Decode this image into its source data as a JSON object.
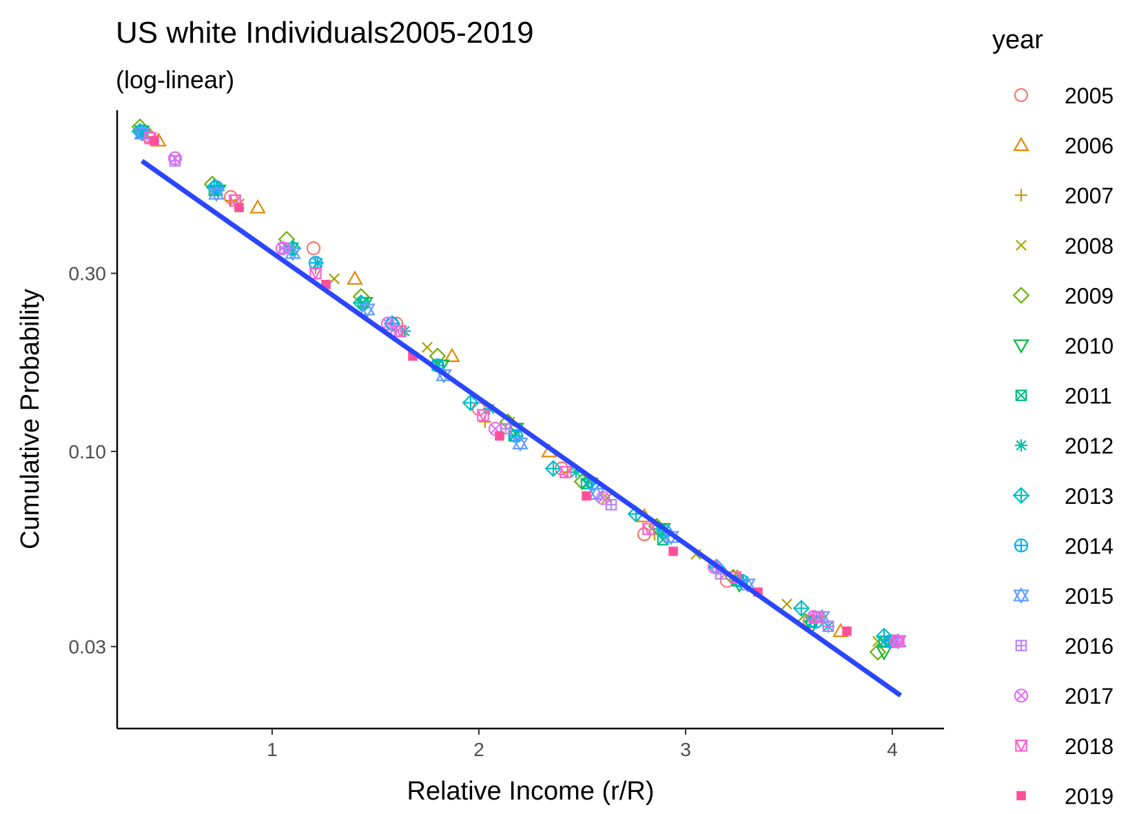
{
  "chart_data": {
    "type": "scatter",
    "title": "US white Individuals2005-2019",
    "subtitle": "(log-linear)",
    "xlabel": "Relative Income (r/R)",
    "ylabel": "Cumulative Probability",
    "x_scale": "linear",
    "y_scale": "log",
    "xlim": [
      0.25,
      4.25
    ],
    "ylim": [
      0.0181,
      0.82
    ],
    "x_ticks": [
      1,
      2,
      3,
      4
    ],
    "x_tick_labels": [
      "1",
      "2",
      "3",
      "4"
    ],
    "y_ticks": [
      0.03,
      0.1,
      0.3
    ],
    "y_tick_labels": [
      "0.03",
      "0.10",
      "0.30"
    ],
    "grid": false,
    "legend": {
      "title": "year",
      "position": "right",
      "entries": [
        "2005",
        "2006",
        "2007",
        "2008",
        "2009",
        "2010",
        "2011",
        "2012",
        "2013",
        "2014",
        "2015",
        "2016",
        "2017",
        "2018",
        "2019"
      ]
    },
    "series": [
      {
        "name": "2005",
        "color": "#F8766D",
        "shape": "circle",
        "points": [
          [
            0.4,
            0.7
          ],
          [
            0.8,
            0.48
          ],
          [
            1.2,
            0.35
          ],
          [
            1.6,
            0.22
          ],
          [
            2.0,
            0.13
          ],
          [
            2.4,
            0.09
          ],
          [
            2.8,
            0.06
          ],
          [
            3.2,
            0.045
          ],
          [
            3.6,
            0.035
          ],
          [
            4.0,
            0.031
          ]
        ]
      },
      {
        "name": "2006",
        "color": "#E58700",
        "shape": "triangle-up",
        "points": [
          [
            0.45,
            0.68
          ],
          [
            0.93,
            0.45
          ],
          [
            1.4,
            0.29
          ],
          [
            1.87,
            0.18
          ],
          [
            2.34,
            0.1
          ],
          [
            2.8,
            0.067
          ],
          [
            3.25,
            0.046
          ],
          [
            3.75,
            0.033
          ]
        ]
      },
      {
        "name": "2007",
        "color": "#C99800",
        "shape": "plus",
        "points": [
          [
            0.39,
            0.72
          ],
          [
            0.8,
            0.47
          ],
          [
            1.21,
            0.31
          ],
          [
            1.63,
            0.21
          ],
          [
            2.03,
            0.12
          ],
          [
            2.43,
            0.088
          ],
          [
            2.85,
            0.06
          ],
          [
            3.24,
            0.046
          ],
          [
            3.65,
            0.036
          ],
          [
            3.99,
            0.031
          ]
        ]
      },
      {
        "name": "2008",
        "color": "#A3A500",
        "shape": "cross",
        "points": [
          [
            0.39,
            0.71
          ],
          [
            0.84,
            0.46
          ],
          [
            1.3,
            0.29
          ],
          [
            1.75,
            0.19
          ],
          [
            2.15,
            0.12
          ],
          [
            2.62,
            0.075
          ],
          [
            3.05,
            0.053
          ],
          [
            3.49,
            0.039
          ],
          [
            3.93,
            0.031
          ]
        ]
      },
      {
        "name": "2009",
        "color": "#6BB100",
        "shape": "diamond",
        "points": [
          [
            0.36,
            0.74
          ],
          [
            0.71,
            0.52
          ],
          [
            1.07,
            0.37
          ],
          [
            1.43,
            0.26
          ],
          [
            1.8,
            0.18
          ],
          [
            2.14,
            0.12
          ],
          [
            2.5,
            0.083
          ],
          [
            2.86,
            0.063
          ],
          [
            3.23,
            0.046
          ],
          [
            3.58,
            0.035
          ],
          [
            3.93,
            0.029
          ]
        ]
      },
      {
        "name": "2010",
        "color": "#00BA38",
        "shape": "triangle-down",
        "points": [
          [
            0.37,
            0.72
          ],
          [
            0.74,
            0.5
          ],
          [
            1.09,
            0.35
          ],
          [
            1.45,
            0.25
          ],
          [
            1.82,
            0.17
          ],
          [
            2.18,
            0.115
          ],
          [
            2.54,
            0.082
          ],
          [
            2.89,
            0.062
          ],
          [
            3.26,
            0.044
          ],
          [
            3.61,
            0.034
          ],
          [
            3.96,
            0.029
          ]
        ]
      },
      {
        "name": "2011",
        "color": "#00BF7D",
        "shape": "square-cross",
        "points": [
          [
            0.37,
            0.71
          ],
          [
            0.72,
            0.5
          ],
          [
            1.08,
            0.35
          ],
          [
            1.44,
            0.25
          ],
          [
            1.8,
            0.17
          ],
          [
            2.17,
            0.11
          ],
          [
            2.52,
            0.082
          ],
          [
            2.89,
            0.058
          ],
          [
            3.25,
            0.045
          ],
          [
            3.61,
            0.035
          ],
          [
            3.96,
            0.031
          ]
        ]
      },
      {
        "name": "2012",
        "color": "#00C1A3",
        "shape": "asterisk",
        "points": [
          [
            0.37,
            0.72
          ],
          [
            0.74,
            0.5
          ],
          [
            1.22,
            0.32
          ],
          [
            1.64,
            0.21
          ],
          [
            2.05,
            0.13
          ],
          [
            2.47,
            0.088
          ],
          [
            2.87,
            0.062
          ],
          [
            3.28,
            0.045
          ],
          [
            3.69,
            0.034
          ],
          [
            3.99,
            0.031
          ]
        ]
      },
      {
        "name": "2013",
        "color": "#00BFC4",
        "shape": "diamond-plus",
        "points": [
          [
            0.36,
            0.72
          ],
          [
            0.72,
            0.51
          ],
          [
            1.1,
            0.35
          ],
          [
            1.43,
            0.25
          ],
          [
            1.58,
            0.22
          ],
          [
            1.96,
            0.135
          ],
          [
            2.36,
            0.09
          ],
          [
            2.76,
            0.068
          ],
          [
            3.15,
            0.049
          ],
          [
            3.56,
            0.038
          ],
          [
            3.96,
            0.032
          ]
        ]
      },
      {
        "name": "2014",
        "color": "#00B0F6",
        "shape": "circle-plus",
        "points": [
          [
            0.37,
            0.72
          ],
          [
            0.73,
            0.51
          ],
          [
            1.21,
            0.32
          ],
          [
            1.58,
            0.22
          ],
          [
            1.8,
            0.17
          ],
          [
            2.18,
            0.11
          ],
          [
            2.55,
            0.082
          ],
          [
            2.9,
            0.061
          ],
          [
            3.27,
            0.045
          ],
          [
            3.63,
            0.035
          ],
          [
            3.99,
            0.031
          ]
        ]
      },
      {
        "name": "2015",
        "color": "#619CFF",
        "shape": "star",
        "points": [
          [
            0.37,
            0.71
          ],
          [
            0.73,
            0.49
          ],
          [
            1.1,
            0.34
          ],
          [
            1.46,
            0.24
          ],
          [
            1.83,
            0.16
          ],
          [
            2.2,
            0.105
          ],
          [
            2.57,
            0.077
          ],
          [
            2.93,
            0.059
          ],
          [
            3.3,
            0.044
          ],
          [
            3.66,
            0.036
          ],
          [
            4.03,
            0.031
          ]
        ]
      },
      {
        "name": "2016",
        "color": "#B983FF",
        "shape": "square-plus",
        "points": [
          [
            0.53,
            0.6
          ],
          [
            1.06,
            0.35
          ],
          [
            1.6,
            0.21
          ],
          [
            2.13,
            0.115
          ],
          [
            2.64,
            0.072
          ],
          [
            3.17,
            0.047
          ],
          [
            3.69,
            0.034
          ],
          [
            4.03,
            0.031
          ]
        ]
      },
      {
        "name": "2017",
        "color": "#E76BF3",
        "shape": "circle-cross",
        "points": [
          [
            0.53,
            0.61
          ],
          [
            1.05,
            0.35
          ],
          [
            1.56,
            0.22
          ],
          [
            2.08,
            0.115
          ],
          [
            2.6,
            0.075
          ],
          [
            3.14,
            0.049
          ],
          [
            3.62,
            0.036
          ],
          [
            4.02,
            0.031
          ]
        ]
      },
      {
        "name": "2018",
        "color": "#FD61D1",
        "shape": "square-triangle",
        "points": [
          [
            0.41,
            0.69
          ],
          [
            0.82,
            0.47
          ],
          [
            1.21,
            0.3
          ],
          [
            1.62,
            0.21
          ],
          [
            2.02,
            0.125
          ],
          [
            2.42,
            0.088
          ],
          [
            2.82,
            0.062
          ],
          [
            3.24,
            0.046
          ],
          [
            3.64,
            0.036
          ],
          [
            4.03,
            0.031
          ]
        ]
      },
      {
        "name": "2019",
        "color": "#FF4F9A",
        "shape": "square",
        "points": [
          [
            0.43,
            0.68
          ],
          [
            0.84,
            0.45
          ],
          [
            1.26,
            0.28
          ],
          [
            1.68,
            0.18
          ],
          [
            2.1,
            0.11
          ],
          [
            2.52,
            0.076
          ],
          [
            2.94,
            0.054
          ],
          [
            3.35,
            0.042
          ],
          [
            3.78,
            0.033
          ]
        ]
      }
    ],
    "fit_line": {
      "color": "#2B46FF",
      "x": [
        0.37,
        4.04
      ],
      "y": [
        0.6,
        0.0222
      ]
    }
  }
}
